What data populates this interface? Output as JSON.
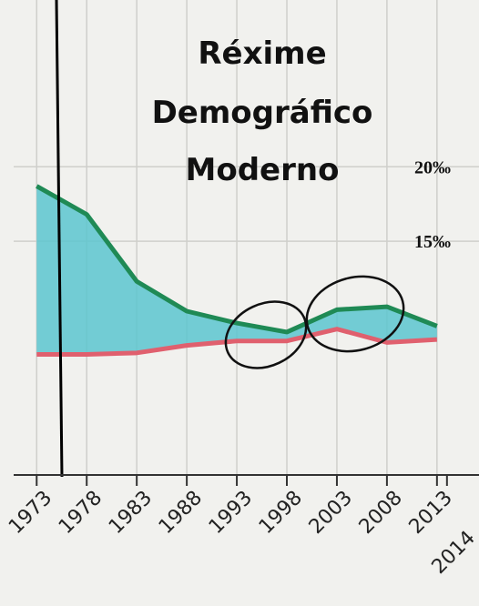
{
  "chart_data": {
    "type": "line",
    "title": [
      "Réxime",
      "Demográfico",
      "Moderno"
    ],
    "x": [
      1973,
      1978,
      1983,
      1988,
      1993,
      1998,
      2003,
      2008,
      2013
    ],
    "series": [
      {
        "color": "#1f8a55",
        "values": [
          18.7,
          16.8,
          12.3,
          10.3,
          9.5,
          8.9,
          10.4,
          10.6,
          9.3
        ]
      },
      {
        "color": "#e0606e",
        "values": [
          7.4,
          7.4,
          7.5,
          8.0,
          8.3,
          8.3,
          9.1,
          8.2,
          8.4
        ]
      }
    ],
    "fill_color": "#5cc6cf",
    "xlim": [
      1970.7,
      2017.2
    ],
    "xticks": [
      1973,
      1978,
      1983,
      1988,
      1993,
      1998,
      2003,
      2008,
      2013,
      2014
    ],
    "ylim": [
      -0.7,
      31.2
    ],
    "yticks": [
      {
        "value": 20,
        "label": "20‰"
      },
      {
        "value": 15,
        "label": "15‰"
      }
    ],
    "grid": true
  }
}
